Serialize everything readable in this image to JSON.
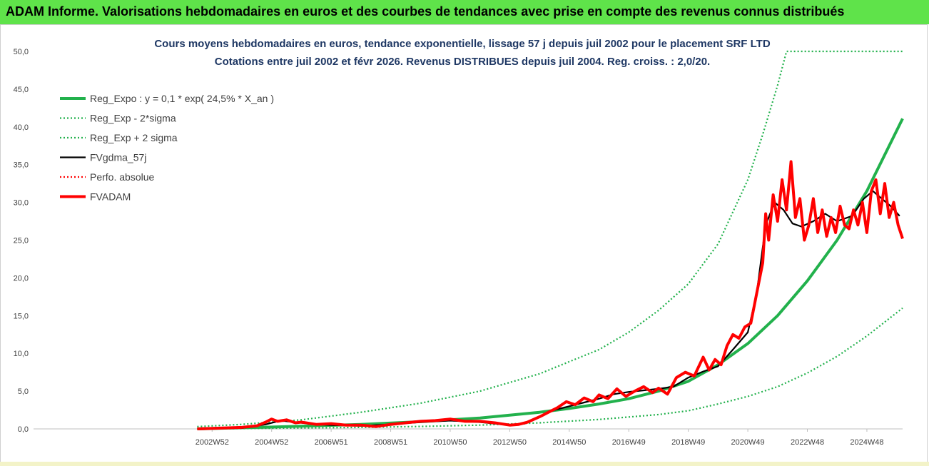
{
  "banner": {
    "title": "ADAM Informe. Valorisations hebdomadaires en euros et des courbes de tendances avec prise en compte des revenus connus distribués"
  },
  "chart_data": {
    "type": "line",
    "title_line1": "Cours moyens hebdomadaires en euros, tendance exponentielle, lissage 57 j depuis juil 2002 pour le placement SRF LTD",
    "title_line2": "Cotations entre juil 2002 et févr 2026. Revenus DISTRIBUES depuis juil 2004. Reg. croiss. : 2,0/20.",
    "xlabel": "",
    "ylabel": "",
    "xlim": [
      1997.0,
      2026.2
    ],
    "ylim": [
      0,
      50
    ],
    "y_ticks": [
      "0,0",
      "5,0",
      "10,0",
      "15,0",
      "20,0",
      "25,0",
      "30,0",
      "35,0",
      "40,0",
      "45,0",
      "50,0"
    ],
    "y_tick_values": [
      0,
      5,
      10,
      15,
      20,
      25,
      30,
      35,
      40,
      45,
      50
    ],
    "x_ticks": [
      {
        "label": "2002W52",
        "x": 2003.0
      },
      {
        "label": "2004W52",
        "x": 2005.0
      },
      {
        "label": "2006W51",
        "x": 2007.0
      },
      {
        "label": "2008W51",
        "x": 2009.0
      },
      {
        "label": "2010W50",
        "x": 2011.0
      },
      {
        "label": "2012W50",
        "x": 2013.0
      },
      {
        "label": "2014W50",
        "x": 2015.0
      },
      {
        "label": "2016W49",
        "x": 2017.0
      },
      {
        "label": "2018W49",
        "x": 2019.0
      },
      {
        "label": "2020W49",
        "x": 2021.0
      },
      {
        "label": "2022W48",
        "x": 2023.0
      },
      {
        "label": "2024W48",
        "x": 2025.0
      }
    ],
    "grid": false,
    "legend_position": "top-left",
    "series": [
      {
        "name": "Reg_Expo : y = 0,1 * exp( 24,5% *  X_an )",
        "color": "#22b14c",
        "style": "solid-thick",
        "x": [
          2002.5,
          2004,
          2006,
          2008,
          2010,
          2012,
          2014,
          2015,
          2016,
          2017,
          2018,
          2019,
          2020,
          2021,
          2022,
          2023,
          2024,
          2025,
          2026.2
        ],
        "values": [
          0.0,
          0.15,
          0.35,
          0.6,
          0.95,
          1.45,
          2.2,
          2.7,
          3.3,
          4.0,
          5.0,
          6.3,
          8.5,
          11.3,
          15.0,
          19.6,
          25.0,
          31.5,
          41.1
        ]
      },
      {
        "name": "Reg_Exp - 2*sigma",
        "color": "#22b14c",
        "style": "dotted",
        "x": [
          2002.5,
          2004,
          2006,
          2008,
          2010,
          2012,
          2014,
          2016,
          2018,
          2019,
          2020,
          2021,
          2022,
          2023,
          2024,
          2025,
          2026.2
        ],
        "values": [
          0.0,
          0.05,
          0.12,
          0.2,
          0.32,
          0.5,
          0.8,
          1.25,
          1.9,
          2.4,
          3.3,
          4.3,
          5.6,
          7.4,
          9.6,
          12.3,
          16.0
        ]
      },
      {
        "name": "Reg_Exp + 2 sigma",
        "color": "#22b14c",
        "style": "dotted",
        "x": [
          2002.5,
          2004,
          2006,
          2008,
          2010,
          2012,
          2014,
          2016,
          2017,
          2018,
          2019,
          2020,
          2021,
          2021.5,
          2022,
          2022.3,
          2026.2
        ],
        "values": [
          0.3,
          0.6,
          1.2,
          2.2,
          3.4,
          5.0,
          7.3,
          10.5,
          12.8,
          15.7,
          19.2,
          24.5,
          33.0,
          39.0,
          45.5,
          50.0,
          50.0
        ]
      },
      {
        "name": "FVgdma_57j",
        "color": "#000000",
        "style": "solid",
        "x": [
          2002.5,
          2004,
          2004.8,
          2005.3,
          2006,
          2006.5,
          2007,
          2008,
          2009,
          2010,
          2011,
          2011.5,
          2012,
          2013,
          2013.5,
          2014,
          2014.5,
          2015,
          2015.5,
          2016,
          2016.5,
          2017,
          2017.5,
          2018,
          2018.5,
          2019,
          2019.5,
          2020,
          2020.5,
          2021,
          2021.3,
          2021.6,
          2021.9,
          2022.2,
          2022.5,
          2022.8,
          2023.2,
          2023.6,
          2024,
          2024.5,
          2024.9,
          2025.2,
          2025.5,
          2025.8,
          2026.1
        ],
        "values": [
          0.0,
          0.1,
          0.6,
          1.1,
          0.8,
          0.6,
          0.5,
          0.4,
          0.6,
          0.9,
          1.1,
          1.0,
          0.9,
          0.5,
          0.7,
          1.6,
          2.5,
          3.0,
          3.5,
          4.0,
          4.6,
          4.9,
          5.1,
          5.3,
          5.6,
          6.8,
          7.6,
          8.3,
          10.5,
          12.8,
          18.0,
          27.0,
          30.0,
          29.0,
          27.2,
          26.8,
          27.5,
          28.5,
          27.5,
          28.2,
          30.5,
          31.5,
          30.5,
          29.5,
          28.2
        ]
      },
      {
        "name": "Perfo. absolue",
        "color": "#ff0000",
        "style": "dotted",
        "x": [],
        "values": []
      },
      {
        "name": "FVADAM",
        "color": "#ff0000",
        "style": "solid-thick",
        "x": [
          2002.5,
          2004,
          2004.5,
          2004.8,
          2005,
          2005.2,
          2005.5,
          2005.8,
          2006,
          2006.5,
          2007,
          2007.5,
          2008,
          2008.5,
          2009,
          2009.5,
          2010,
          2010.5,
          2011,
          2011.5,
          2012,
          2012.5,
          2013,
          2013.3,
          2013.6,
          2014,
          2014.3,
          2014.6,
          2014.9,
          2015.2,
          2015.5,
          2015.8,
          2016,
          2016.3,
          2016.6,
          2016.9,
          2017.2,
          2017.5,
          2017.8,
          2018,
          2018.3,
          2018.6,
          2018.9,
          2019.2,
          2019.5,
          2019.7,
          2019.9,
          2020.1,
          2020.3,
          2020.5,
          2020.7,
          2020.9,
          2021.1,
          2021.3,
          2021.5,
          2021.6,
          2021.7,
          2021.85,
          2022.0,
          2022.15,
          2022.3,
          2022.45,
          2022.6,
          2022.75,
          2022.9,
          2023.05,
          2023.2,
          2023.35,
          2023.5,
          2023.65,
          2023.8,
          2023.95,
          2024.1,
          2024.25,
          2024.4,
          2024.55,
          2024.7,
          2024.85,
          2025.0,
          2025.15,
          2025.3,
          2025.45,
          2025.6,
          2025.75,
          2025.9,
          2026.05,
          2026.2
        ],
        "values": [
          0.0,
          0.2,
          0.4,
          0.9,
          1.3,
          1.0,
          1.2,
          0.8,
          0.9,
          0.6,
          0.7,
          0.5,
          0.5,
          0.3,
          0.6,
          0.8,
          1.0,
          1.1,
          1.3,
          1.0,
          1.0,
          0.8,
          0.5,
          0.6,
          0.9,
          1.6,
          2.2,
          2.8,
          3.6,
          3.2,
          4.1,
          3.6,
          4.5,
          4.0,
          5.3,
          4.3,
          5.0,
          5.6,
          4.8,
          5.4,
          4.6,
          6.8,
          7.5,
          7.0,
          9.5,
          7.8,
          9.2,
          8.5,
          11.0,
          12.5,
          12.0,
          13.5,
          14.0,
          18.0,
          22.0,
          28.5,
          25.0,
          31.0,
          27.5,
          33.0,
          29.0,
          35.4,
          28.0,
          30.5,
          25.0,
          27.0,
          30.5,
          26.0,
          29.0,
          25.5,
          28.0,
          26.0,
          29.5,
          27.0,
          26.5,
          29.0,
          27.0,
          30.0,
          26.0,
          31.5,
          33.0,
          28.5,
          32.5,
          28.0,
          30.0,
          27.0,
          25.2
        ]
      }
    ]
  }
}
